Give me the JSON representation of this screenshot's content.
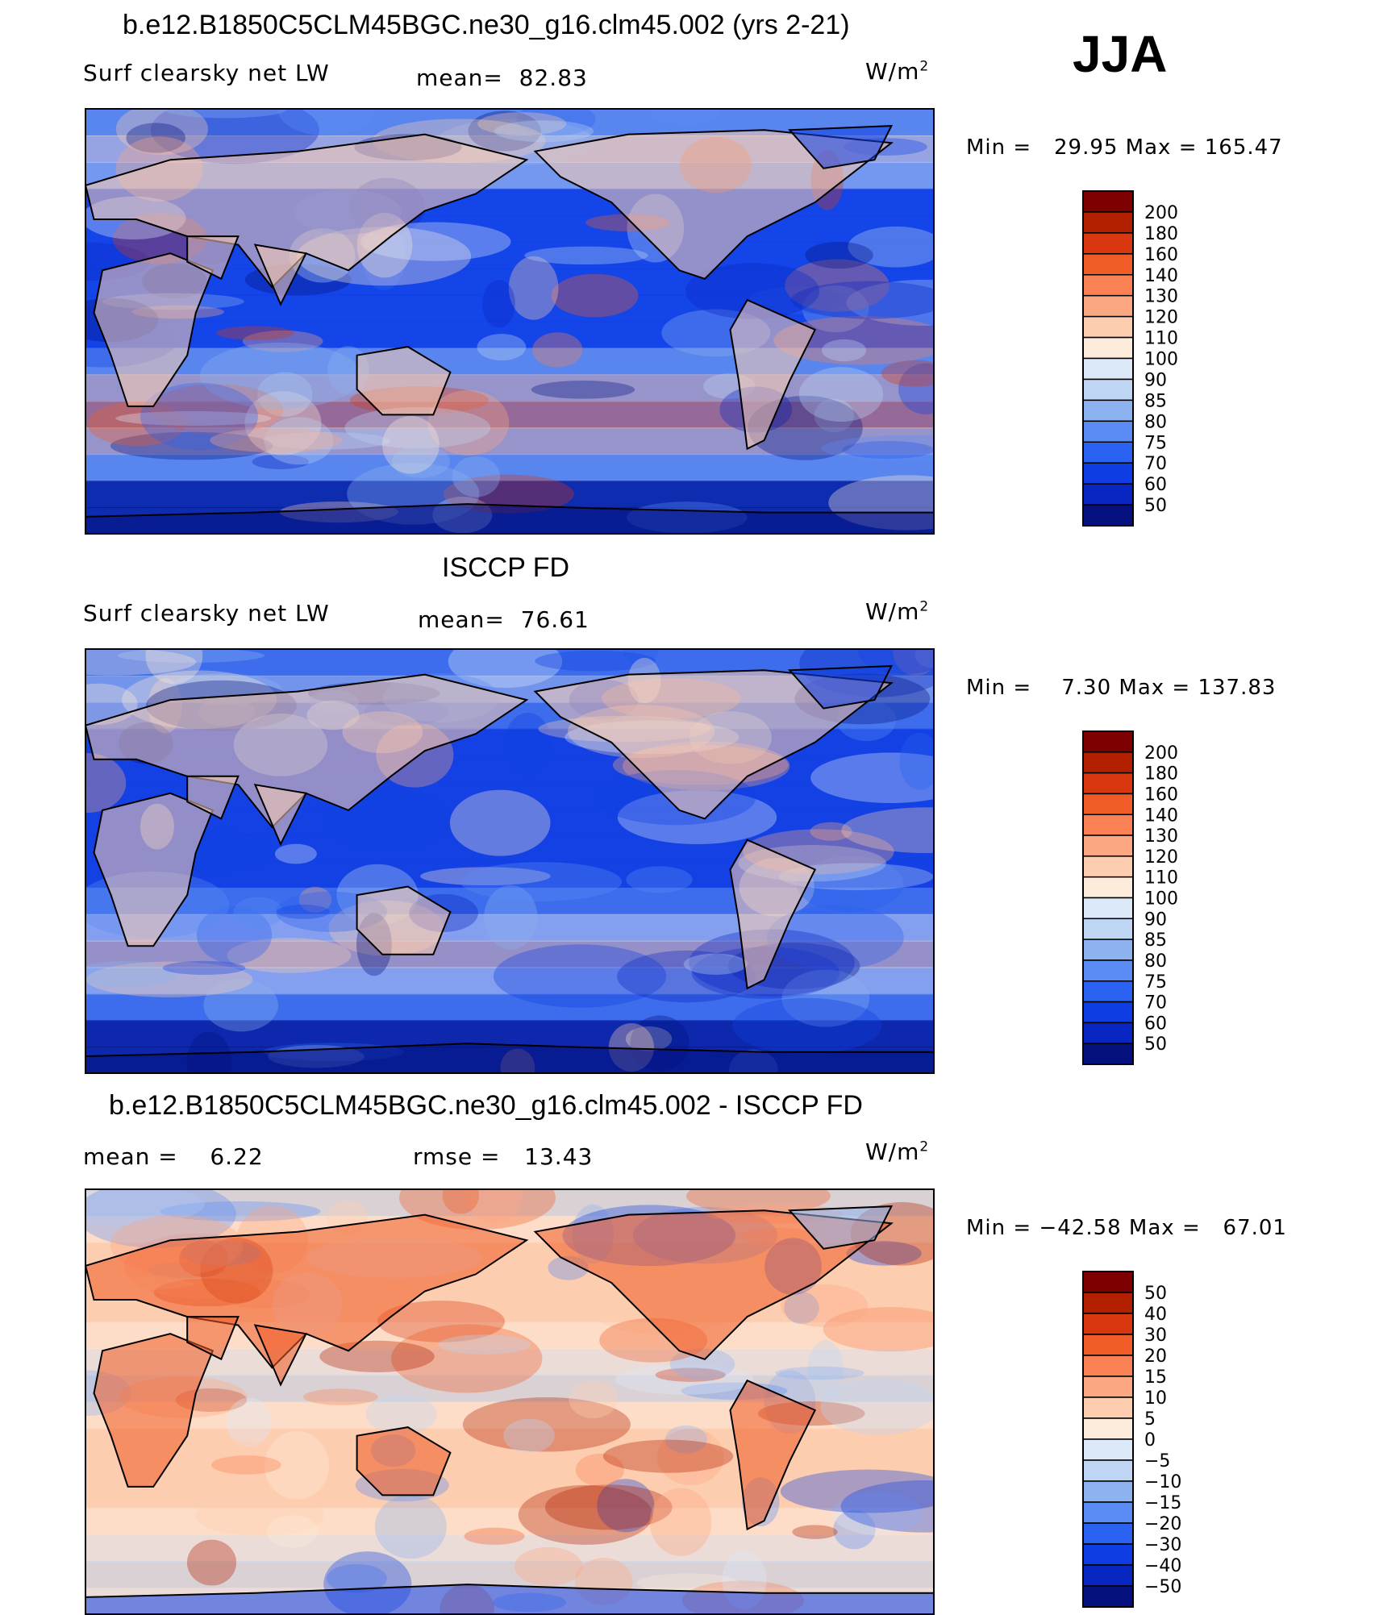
{
  "season": "JJA",
  "panels": [
    {
      "title": "b.e12.B1850C5CLM45BGC.ne30_g16.clm45.002 (yrs 2-21)",
      "left_label": "Surf clearsky net LW",
      "stat1": "mean=  82.83",
      "stat2": "",
      "units_base": "W/m",
      "units_sup": "2",
      "minmax": "Min =   29.95 Max = 165.47",
      "colorbar": {
        "labels": [
          "200",
          "180",
          "160",
          "140",
          "130",
          "120",
          "110",
          "100",
          "90",
          "85",
          "80",
          "75",
          "70",
          "60",
          "50"
        ],
        "colors": [
          "#7f0000",
          "#b22000",
          "#d8370f",
          "#f15b26",
          "#fa8154",
          "#fba781",
          "#fdcdb0",
          "#fdebdb",
          "#dce9f8",
          "#bed5f3",
          "#8cb2f0",
          "#5b8cf3",
          "#2a62f1",
          "#0e3ee3",
          "#0826c2",
          "#03107e"
        ]
      },
      "map_palette": [
        "#03107e",
        "#0826c2",
        "#0e3ee3",
        "#2a62f1",
        "#5b8cf3",
        "#8cb2f0",
        "#bed5f3",
        "#dce9f8",
        "#fdebdb",
        "#fdcdb0",
        "#fba781",
        "#fa8154",
        "#f15b26",
        "#d8370f"
      ],
      "map_base": "#1c4fee"
    },
    {
      "title": "ISCCP FD",
      "left_label": "Surf clearsky net LW",
      "stat1": "mean=  76.61",
      "stat2": "",
      "units_base": "W/m",
      "units_sup": "2",
      "minmax": "Min =    7.30 Max = 137.83",
      "colorbar": {
        "labels": [
          "200",
          "180",
          "160",
          "140",
          "130",
          "120",
          "110",
          "100",
          "90",
          "85",
          "80",
          "75",
          "70",
          "60",
          "50"
        ],
        "colors": [
          "#7f0000",
          "#b22000",
          "#d8370f",
          "#f15b26",
          "#fa8154",
          "#fba781",
          "#fdcdb0",
          "#fdebdb",
          "#dce9f8",
          "#bed5f3",
          "#8cb2f0",
          "#5b8cf3",
          "#2a62f1",
          "#0e3ee3",
          "#0826c2",
          "#03107e"
        ]
      },
      "map_palette": [
        "#03107e",
        "#0826c2",
        "#0e3ee3",
        "#2a62f1",
        "#5b8cf3",
        "#8cb2f0",
        "#bed5f3",
        "#dce9f8",
        "#fdebdb",
        "#fdcdb0",
        "#fba781"
      ],
      "map_base": "#1a46e4"
    },
    {
      "title": "b.e12.B1850C5CLM45BGC.ne30_g16.clm45.002 - ISCCP FD",
      "left_label": "mean =    6.22",
      "stat1": "",
      "stat2": "rmse =   13.43",
      "units_base": "W/m",
      "units_sup": "2",
      "minmax": "Min = −42.58 Max =   67.01",
      "colorbar": {
        "labels": [
          "50",
          "40",
          "30",
          "20",
          "15",
          "10",
          "5",
          "0",
          "−5",
          "−10",
          "−15",
          "−20",
          "−30",
          "−40",
          "−50"
        ],
        "colors": [
          "#7f0000",
          "#b22000",
          "#d8370f",
          "#f15b26",
          "#fa8154",
          "#fba781",
          "#fdcdb0",
          "#fdebdb",
          "#dce9f8",
          "#bed5f3",
          "#8cb2f0",
          "#5b8cf3",
          "#2a62f1",
          "#0e3ee3",
          "#0826c2",
          "#03107e"
        ]
      },
      "map_palette": [
        "#0e3ee3",
        "#5b8cf3",
        "#8cb2f0",
        "#bed5f3",
        "#dce9f8",
        "#fdebdb",
        "#fdcdb0",
        "#fba781",
        "#fa8154",
        "#f15b26",
        "#d8370f",
        "#b22000"
      ],
      "map_base": "#fdcdb0"
    }
  ]
}
